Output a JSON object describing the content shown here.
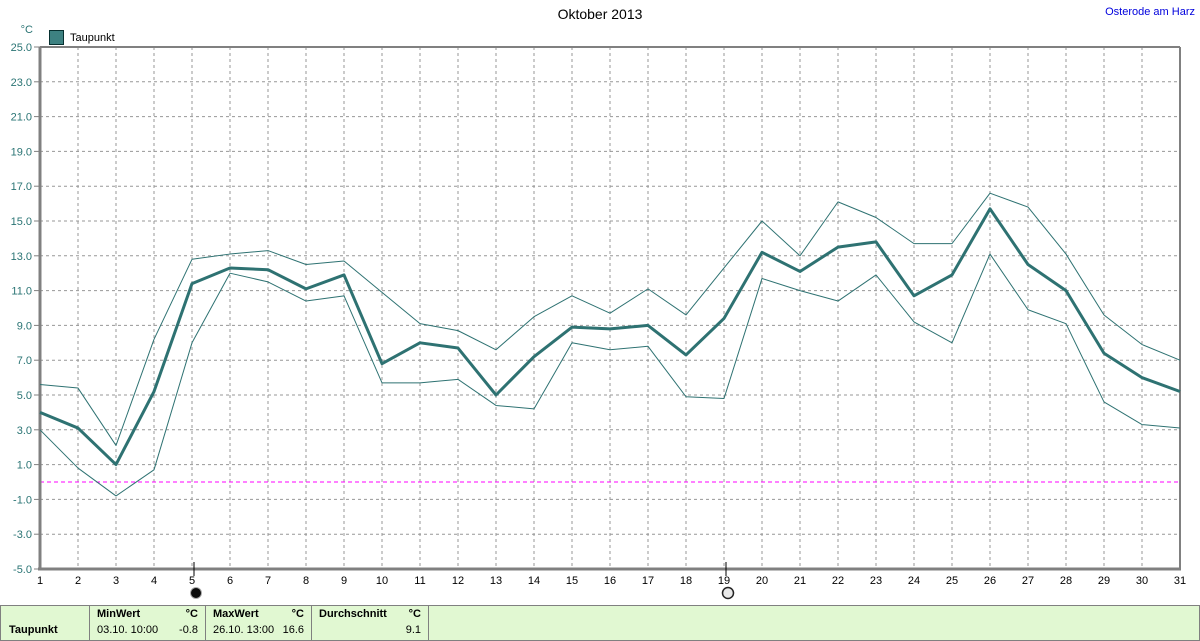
{
  "header": {
    "title": "Oktober 2013",
    "station_link": "Osterode am Harz"
  },
  "legend": {
    "label": "Taupunkt",
    "unit": "°C",
    "swatch_color": "#3d8181"
  },
  "chart_data": {
    "type": "line",
    "title": "Oktober 2013",
    "xlabel": "",
    "ylabel": "°C",
    "ylim": [
      -5,
      25
    ],
    "ytick_labels": [
      "25.0",
      "23.0",
      "21.0",
      "19.0",
      "17.0",
      "15.0",
      "13.0",
      "11.0",
      "9.0",
      "7.0",
      "5.0",
      "3.0",
      "1.0",
      "-1.0",
      "-3.0",
      "-5.0"
    ],
    "grid": true,
    "zero_line": 0,
    "legend_position": "top-left",
    "x": [
      1,
      2,
      3,
      4,
      5,
      6,
      7,
      8,
      9,
      10,
      11,
      12,
      13,
      14,
      15,
      16,
      17,
      18,
      19,
      20,
      21,
      22,
      23,
      24,
      25,
      26,
      27,
      28,
      29,
      30,
      31
    ],
    "series": [
      {
        "name": "Taupunkt Mittelwert",
        "style": "thick",
        "values": [
          4.0,
          3.1,
          1.0,
          5.2,
          11.4,
          12.3,
          12.2,
          11.1,
          11.9,
          6.8,
          8.0,
          7.7,
          5.0,
          7.2,
          8.9,
          8.8,
          9.0,
          7.3,
          9.4,
          13.2,
          12.1,
          13.5,
          13.8,
          10.7,
          11.9,
          15.7,
          12.5,
          11.0,
          7.4,
          6.0,
          5.2
        ]
      },
      {
        "name": "Taupunkt Maximum",
        "style": "thin",
        "values": [
          5.6,
          5.4,
          2.1,
          8.2,
          12.8,
          13.1,
          13.3,
          12.5,
          12.7,
          10.9,
          9.1,
          8.7,
          7.6,
          9.5,
          10.7,
          9.7,
          11.1,
          9.6,
          12.3,
          15.0,
          13.0,
          16.1,
          15.2,
          13.7,
          13.7,
          16.6,
          15.8,
          13.1,
          9.6,
          7.9,
          7.0
        ]
      },
      {
        "name": "Taupunkt Minimum",
        "style": "thin",
        "values": [
          3.0,
          0.8,
          -0.8,
          0.7,
          8.0,
          12.0,
          11.5,
          10.4,
          10.7,
          5.7,
          5.7,
          5.9,
          4.4,
          4.2,
          8.0,
          7.6,
          7.8,
          4.9,
          4.8,
          11.7,
          11.0,
          10.4,
          11.9,
          9.2,
          8.0,
          13.1,
          9.9,
          9.1,
          4.6,
          3.3,
          3.1
        ]
      }
    ],
    "markers": [
      {
        "day": 5,
        "symbol": "new-moon"
      },
      {
        "day": 19,
        "symbol": "full-moon"
      }
    ]
  },
  "summary_table": {
    "row_label": "Taupunkt",
    "columns": [
      {
        "header": "MinWert",
        "unit": "°C",
        "datetime": "03.10.  10:00",
        "value": "-0.8"
      },
      {
        "header": "MaxWert",
        "unit": "°C",
        "datetime": "26.10.  13:00",
        "value": "16.6"
      },
      {
        "header": "Durchschnitt",
        "unit": "°C",
        "datetime": "",
        "value": "9.1"
      }
    ]
  },
  "colors": {
    "line": "#2e7272",
    "axis_label": "#2a7474",
    "grid": "#979797",
    "frame": "#808080",
    "zero_line": "#ff00ff",
    "table_bg": "#e1f8d2",
    "link": "#0000dd"
  }
}
